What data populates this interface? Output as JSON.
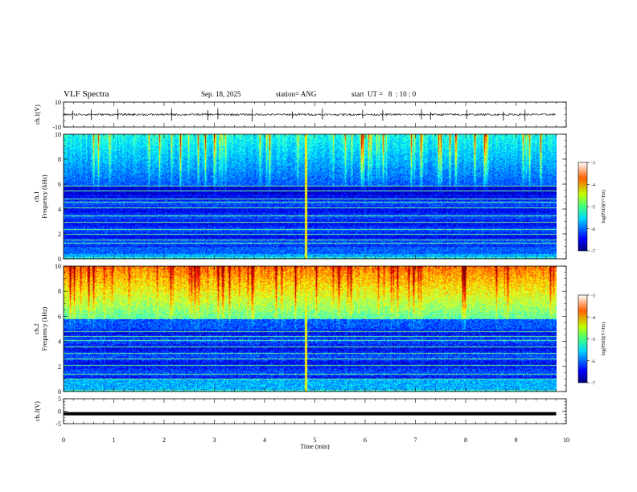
{
  "header": {
    "title": "VLF Spectra",
    "date": "Sep. 18, 2025",
    "station": "station= ANG",
    "start_ut": "start  UT =   8  : 10 : 0"
  },
  "chart_data": [
    {
      "id": "ch1_waveform",
      "type": "line",
      "ylabel": "ch.1(V)",
      "ylim": [
        -10,
        10
      ],
      "yticks": [
        "10",
        "-10"
      ],
      "baseline": 0,
      "spikes_min": [
        0.18,
        0.55,
        1.08,
        2.15,
        2.87,
        3.07,
        3.75,
        4.55,
        5.15,
        5.95,
        6.35,
        7.12,
        7.3,
        8.02,
        8.75,
        9.18
      ]
    },
    {
      "id": "ch1_spectrogram",
      "type": "heatmap",
      "ylabel": "ch.1",
      "ylabel2": "Frequency  (kHz)",
      "ylim": [
        0,
        10
      ],
      "yticks": [
        "0",
        "2",
        "4",
        "6",
        "8",
        "10"
      ],
      "intensity_profile": "bursts above 6 kHz, dark bands 5.2-5.8 kHz, constant lines near 1.3-4.8 kHz",
      "colorbar": {
        "label": "log(PSD)(V²/Hz)",
        "range": [
          -7,
          -3
        ],
        "ticks": [
          "-3",
          "-4",
          "-5",
          "-6",
          "-7"
        ]
      }
    },
    {
      "id": "ch2_spectrogram",
      "type": "heatmap",
      "ylabel": "ch.2",
      "ylabel2": "Frequency  (kHz)",
      "ylim": [
        0,
        10
      ],
      "yticks": [
        "0",
        "2",
        "4",
        "6",
        "8",
        "10"
      ],
      "intensity_profile": "strong broadband above 6 kHz, constant lines near 1-4.5 kHz",
      "colorbar": {
        "label": "log(PSD)(V²/Hz)",
        "range": [
          -7,
          -3
        ],
        "ticks": [
          "-3",
          "-4",
          "-5",
          "-6",
          "-7"
        ]
      }
    },
    {
      "id": "ch3_waveform",
      "type": "line",
      "ylabel": "ch.3(V)",
      "ylim": [
        -5,
        5
      ],
      "yticks": [
        "5",
        "0",
        "-5"
      ],
      "baseline": -1
    },
    {
      "id": "time_axis",
      "type": "axis",
      "xlabel": "Time  (min)",
      "xlim": [
        0,
        10
      ],
      "xticks": [
        "0",
        "1",
        "2",
        "3",
        "4",
        "5",
        "6",
        "7",
        "8",
        "9",
        "10"
      ],
      "data_end_min": 9.8
    }
  ]
}
